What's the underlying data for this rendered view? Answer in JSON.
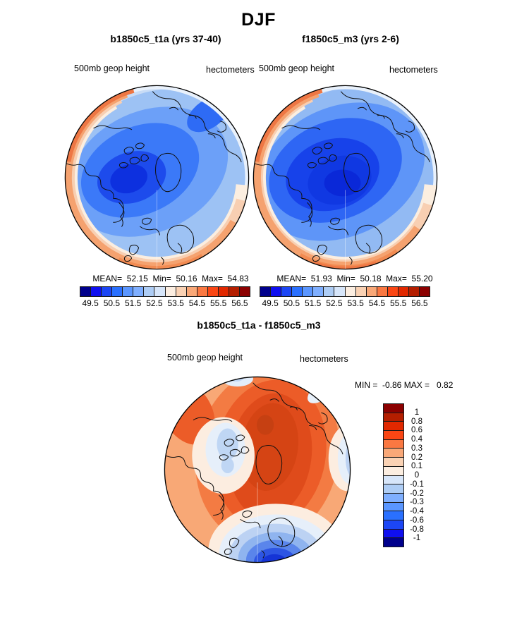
{
  "header": {
    "title": "DJF"
  },
  "panels": {
    "left": {
      "title": "b1850c5_t1a (yrs 37-40)",
      "field_label": "500mb geop height",
      "units_label": "hectometers",
      "stats_line": "MEAN=  52.15  Min=  50.16  Max=  54.83"
    },
    "right": {
      "title": "f1850c5_m3 (yrs 2-6)",
      "field_label": "500mb geop height",
      "units_label": "hectometers",
      "stats_line": "MEAN=  51.93  Min=  50.18  Max=  55.20"
    },
    "diff": {
      "title": "b1850c5_t1a - f1850c5_m3",
      "field_label": "500mb geop height",
      "units_label": "hectometers",
      "minmax_line": "MIN =  -0.86 MAX =   0.82"
    }
  },
  "colorbars": {
    "absolute": {
      "ticks": [
        "49.5",
        "50.5",
        "51.5",
        "52.5",
        "53.5",
        "54.5",
        "55.5",
        "56.5"
      ],
      "colors": [
        "#00008C",
        "#0F0FF0",
        "#1C46F5",
        "#2A70FF",
        "#5A96FF",
        "#7FAFFF",
        "#AECDF5",
        "#D7E6FA",
        "#FCEEE1",
        "#FAD2B4",
        "#F9A878",
        "#FA7842",
        "#FA4614",
        "#E12800",
        "#B41E00",
        "#8B0000"
      ]
    },
    "difference": {
      "ticks": [
        "1",
        "0.8",
        "0.6",
        "0.4",
        "0.3",
        "0.2",
        "0.1",
        "0",
        "-0.1",
        "-0.2",
        "-0.3",
        "-0.4",
        "-0.6",
        "-0.8",
        "-1"
      ],
      "colors": [
        "#8B0000",
        "#B41E00",
        "#E12800",
        "#FA4614",
        "#FA7842",
        "#F9A878",
        "#FAD2B4",
        "#FCEEE1",
        "#D7E6FA",
        "#AECDF5",
        "#7FAFFF",
        "#5A96FF",
        "#2A70FF",
        "#1C46F5",
        "#0F0FF0",
        "#00008C"
      ]
    }
  },
  "chart_data": [
    {
      "type": "heatmap",
      "subtype": "filled-contour-polar-map",
      "season": "DJF",
      "title": "b1850c5_t1a (yrs 37-40)",
      "variable": "500mb geop height",
      "units": "hectometers",
      "projection": "north-polar-stereographic",
      "mean": 52.15,
      "min": 50.16,
      "max": 54.83,
      "contour_levels": [
        49.5,
        50.0,
        50.5,
        51.0,
        51.5,
        52.0,
        52.5,
        53.0,
        53.5,
        54.0,
        54.5,
        55.0,
        55.5,
        56.0,
        56.5
      ],
      "colorbar_tick_labels": [
        "49.5",
        "50.5",
        "51.5",
        "52.5",
        "53.5",
        "54.5",
        "55.5",
        "56.5"
      ],
      "legend_position": "bottom",
      "pattern_summary": "Low heights (blue) centered over the pole and Canadian Arctic, deepest minimum over northern Canada; heights increase outward to high values (orange/red) around the mid-latitude rim, strongest in the upper-left and bottom sectors."
    },
    {
      "type": "heatmap",
      "subtype": "filled-contour-polar-map",
      "season": "DJF",
      "title": "f1850c5_m3 (yrs 2-6)",
      "variable": "500mb geop height",
      "units": "hectometers",
      "projection": "north-polar-stereographic",
      "mean": 51.93,
      "min": 50.18,
      "max": 55.2,
      "contour_levels": [
        49.5,
        50.0,
        50.5,
        51.0,
        51.5,
        52.0,
        52.5,
        53.0,
        53.5,
        54.0,
        54.5,
        55.0,
        55.5,
        56.0,
        56.5
      ],
      "colorbar_tick_labels": [
        "49.5",
        "50.5",
        "51.5",
        "52.5",
        "53.5",
        "54.5",
        "55.5",
        "56.5"
      ],
      "legend_position": "bottom",
      "pattern_summary": "Similar polar low-height pattern with a broader, deeper blue minimum extending from the Canadian Arctic across the pole; orange/red high heights around the periphery, strongest along the bottom rim."
    },
    {
      "type": "heatmap",
      "subtype": "filled-contour-polar-map",
      "season": "DJF",
      "title": "b1850c5_t1a - f1850c5_m3",
      "variable": "500mb geop height",
      "units": "hectometers",
      "projection": "north-polar-stereographic",
      "min": -0.86,
      "max": 0.82,
      "contour_levels": [
        -1,
        -0.8,
        -0.6,
        -0.4,
        -0.3,
        -0.2,
        -0.1,
        0,
        0.1,
        0.2,
        0.3,
        0.4,
        0.6,
        0.8,
        1
      ],
      "colorbar_tick_labels": [
        "1",
        "0.8",
        "0.6",
        "0.4",
        "0.3",
        "0.2",
        "0.1",
        "0",
        "-0.1",
        "-0.2",
        "-0.3",
        "-0.4",
        "-0.6",
        "-0.8",
        "-1"
      ],
      "legend_position": "right",
      "pattern_summary": "Positive differences (orange/red) over most of the Arctic with a maximum over the central Arctic/Siberian side; strong negative differences (blue) over Scandinavia/northern Europe at the bottom, with weaker negative patches on the left, top and right edges."
    }
  ]
}
